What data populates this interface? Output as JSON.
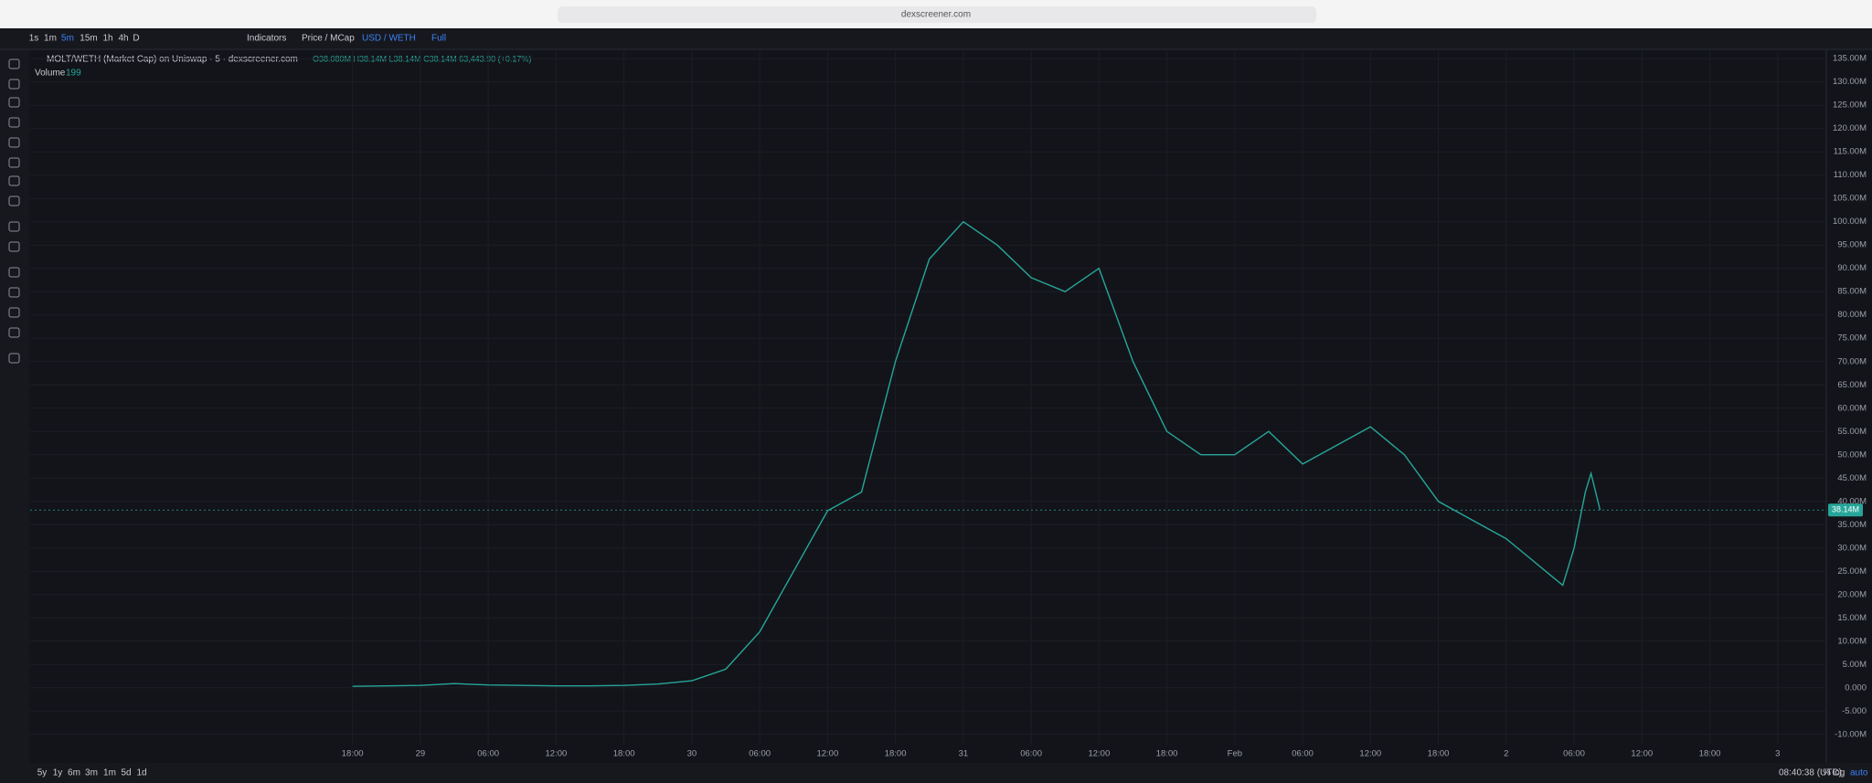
{
  "browser": {
    "url": "dexscreener.com"
  },
  "toolbar": {
    "intervals": [
      "1s",
      "1m",
      "5m",
      "15m",
      "1h",
      "4h",
      "D"
    ],
    "indicators": "Indicators",
    "price_mode": "Price / MCap",
    "currency": "USD / WETH",
    "full": "Full"
  },
  "legend": {
    "ohlc": "O38.080M H38.14M L38.14M C38.14M 63,443.90 (+0.17%)",
    "volume_label": "Volume",
    "volume_value": "199"
  },
  "footer": {
    "ranges": [
      "5y",
      "1y",
      "6m",
      "3m",
      "1m",
      "5d",
      "1d"
    ],
    "clock": "08:40:38 (UTC)",
    "percent": "%",
    "log": "log",
    "auto": "auto"
  },
  "chart_data": {
    "type": "line",
    "title": "MOLT/WETH (Market Cap) on Uniswap · 5 · dexscreener.com",
    "x": [
      0,
      3,
      6,
      9,
      12,
      15,
      18,
      21,
      24,
      27,
      30,
      33,
      36,
      39,
      42,
      45,
      48,
      51,
      54,
      57,
      60,
      63,
      66,
      69,
      72,
      75,
      78,
      81,
      84,
      87,
      90,
      93,
      96,
      99,
      102,
      104,
      106,
      107,
      108,
      109,
      109.5,
      110.3
    ],
    "series": [
      {
        "name": "MOLT/WETH",
        "color": "#26a69a",
        "values": [
          0.3,
          0.4,
          0.5,
          0.9,
          0.6,
          0.5,
          0.4,
          0.4,
          0.5,
          0.8,
          1.5,
          4,
          12,
          25,
          38,
          42,
          70,
          92,
          100,
          95,
          88,
          85,
          90,
          70,
          55,
          50,
          50,
          55,
          48,
          52,
          56,
          50,
          40,
          36,
          32,
          28,
          24,
          22,
          30,
          42,
          46,
          38.14
        ]
      }
    ],
    "last_price": {
      "value": 38.14,
      "label": "38.14M"
    },
    "xlim": [
      -28.5,
      130.3
    ],
    "xticks": [
      {
        "value": 0,
        "label": "18:00"
      },
      {
        "value": 6,
        "label": "29"
      },
      {
        "value": 12,
        "label": "06:00"
      },
      {
        "value": 18,
        "label": "12:00"
      },
      {
        "value": 24,
        "label": "18:00"
      },
      {
        "value": 30,
        "label": "30"
      },
      {
        "value": 36,
        "label": "06:00"
      },
      {
        "value": 42,
        "label": "12:00"
      },
      {
        "value": 48,
        "label": "18:00"
      },
      {
        "value": 54,
        "label": "31"
      },
      {
        "value": 60,
        "label": "06:00"
      },
      {
        "value": 66,
        "label": "12:00"
      },
      {
        "value": 72,
        "label": "18:00"
      },
      {
        "value": 78,
        "label": "Feb"
      },
      {
        "value": 84,
        "label": "06:00"
      },
      {
        "value": 90,
        "label": "12:00"
      },
      {
        "value": 96,
        "label": "18:00"
      },
      {
        "value": 102,
        "label": "2"
      },
      {
        "value": 108,
        "label": "06:00"
      },
      {
        "value": 114,
        "label": "12:00"
      },
      {
        "value": 120,
        "label": "18:00"
      },
      {
        "value": 126,
        "label": "3"
      }
    ],
    "ylim": [
      -12.2,
      137
    ],
    "yticks": [
      {
        "value": 135,
        "label": "135.00M"
      },
      {
        "value": 130,
        "label": "130.00M"
      },
      {
        "value": 125,
        "label": "125.00M"
      },
      {
        "value": 120,
        "label": "120.00M"
      },
      {
        "value": 115,
        "label": "115.00M"
      },
      {
        "value": 110,
        "label": "110.00M"
      },
      {
        "value": 105,
        "label": "105.00M"
      },
      {
        "value": 100,
        "label": "100.00M"
      },
      {
        "value": 95,
        "label": "95.00M"
      },
      {
        "value": 90,
        "label": "90.00M"
      },
      {
        "value": 85,
        "label": "85.00M"
      },
      {
        "value": 80,
        "label": "80.00M"
      },
      {
        "value": 75,
        "label": "75.00M"
      },
      {
        "value": 70,
        "label": "70.00M"
      },
      {
        "value": 65,
        "label": "65.00M"
      },
      {
        "value": 60,
        "label": "60.00M"
      },
      {
        "value": 55,
        "label": "55.00M"
      },
      {
        "value": 50,
        "label": "50.00M"
      },
      {
        "value": 45,
        "label": "45.00M"
      },
      {
        "value": 40,
        "label": "40.00M"
      },
      {
        "value": 35,
        "label": "35.00M"
      },
      {
        "value": 30,
        "label": "30.00M"
      },
      {
        "value": 25,
        "label": "25.00M"
      },
      {
        "value": 20,
        "label": "20.00M"
      },
      {
        "value": 15,
        "label": "15.00M"
      },
      {
        "value": 10,
        "label": "10.00M"
      },
      {
        "value": 5,
        "label": "5.00M"
      },
      {
        "value": 0,
        "label": "0.000"
      },
      {
        "value": -5,
        "label": "-5.000"
      },
      {
        "value": -10,
        "label": "-10.00M"
      }
    ],
    "grid": true
  }
}
